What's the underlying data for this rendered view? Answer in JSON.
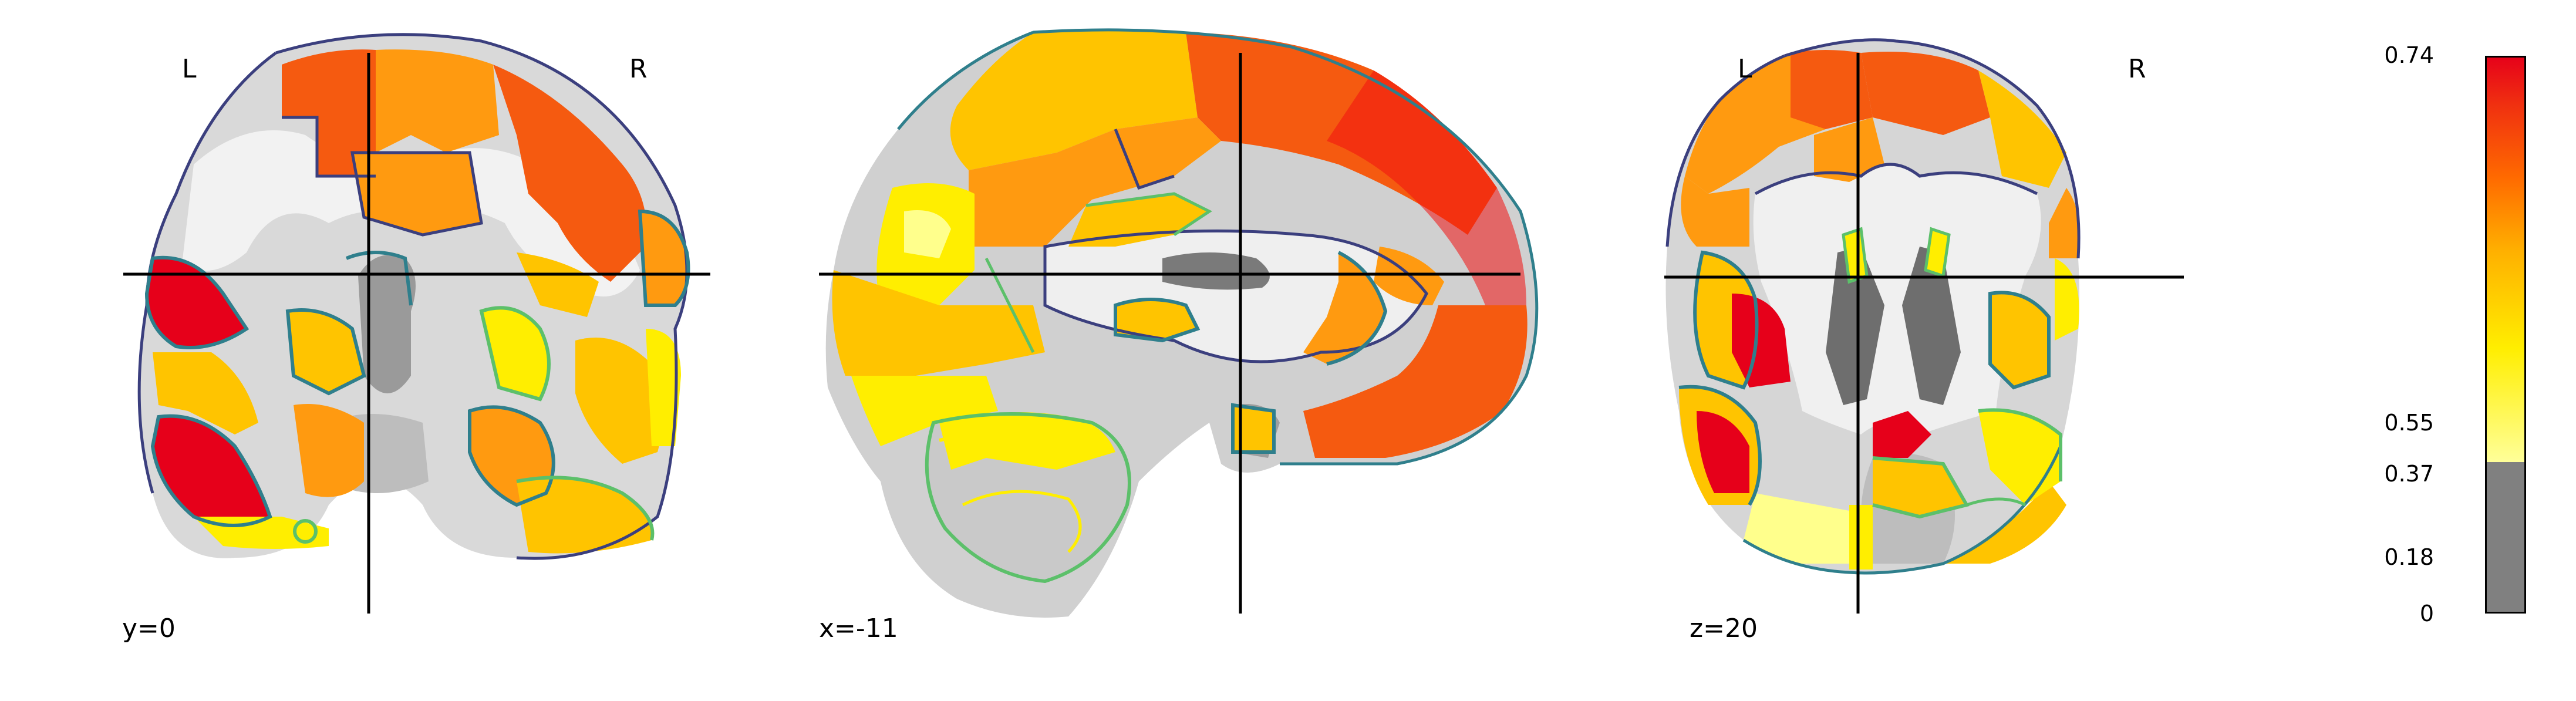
{
  "panels": [
    {
      "view": "coronal",
      "coord_label": "y=0",
      "left_label": "L",
      "right_label": "R"
    },
    {
      "view": "sagittal",
      "coord_label": "x=-11",
      "left_label": "",
      "right_label": ""
    },
    {
      "view": "axial",
      "coord_label": "z=20",
      "left_label": "L",
      "right_label": "R"
    }
  ],
  "colorbar": {
    "ticks": [
      "0.74",
      "0.55",
      "0.37",
      "0.18",
      "0"
    ],
    "colors": {
      "top": "#e6001a",
      "upper": "#ff6a00",
      "mid": "#ffb000",
      "lower": "#ffee00",
      "bottom_light": "#ffff99",
      "gray": "#808080"
    }
  },
  "overlay_colors": {
    "red": "#f01010",
    "orange_red": "#f55a10",
    "orange": "#ff9a10",
    "gold": "#ffc400",
    "yellow": "#fff020",
    "pale_yellow": "#ffff8c",
    "outline_navy": "#3b3f7e",
    "outline_teal": "#2f7f8c",
    "outline_green": "#5cc06a"
  }
}
